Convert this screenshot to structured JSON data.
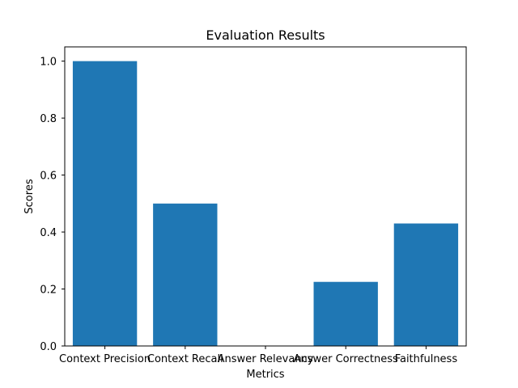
{
  "chart_data": {
    "type": "bar",
    "title": "Evaluation Results",
    "xlabel": "Metrics",
    "ylabel": "Scores",
    "categories": [
      "Context Precision",
      "Context Recall",
      "Answer Relevancy",
      "Answer Correctness",
      "Faithfulness"
    ],
    "values": [
      1.0,
      0.5,
      0.0,
      0.225,
      0.43
    ],
    "ylim": [
      0,
      1.05
    ],
    "yticks": [
      "0.0",
      "0.2",
      "0.4",
      "0.6",
      "0.8",
      "1.0"
    ],
    "grid": false,
    "legend": "none",
    "bar_color": "#1f77b4"
  }
}
